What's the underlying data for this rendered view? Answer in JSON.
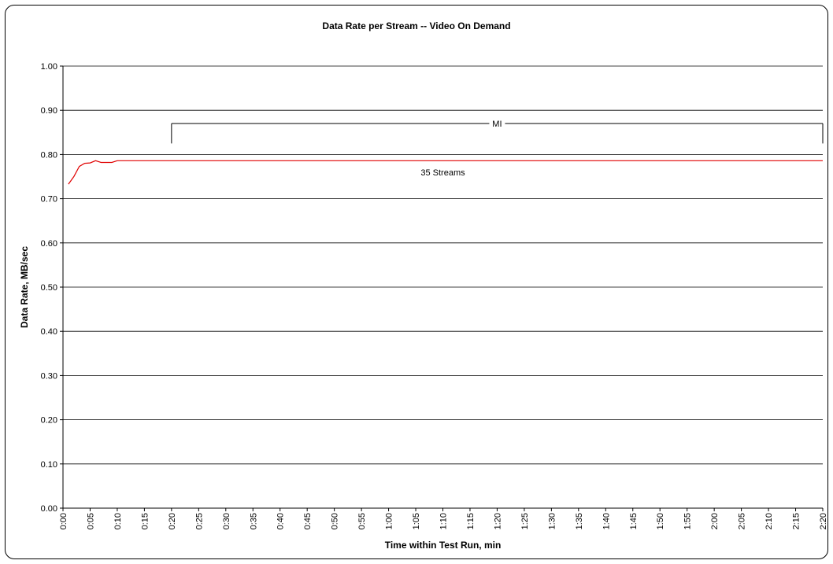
{
  "chart_data": {
    "type": "line",
    "title": "Data Rate per Stream -- Video On Demand",
    "xlabel": "Time within Test Run, min",
    "ylabel": "Data Rate, MB/sec",
    "ylim": [
      0,
      1.0
    ],
    "yticks": [
      "0.00",
      "0.10",
      "0.20",
      "0.30",
      "0.40",
      "0.50",
      "0.60",
      "0.70",
      "0.80",
      "0.90",
      "1.00"
    ],
    "xlim": [
      0,
      140
    ],
    "xtick_step": 5,
    "xticks": [
      "0:00",
      "0:05",
      "0:10",
      "0:15",
      "0:20",
      "0:25",
      "0:30",
      "0:35",
      "0:40",
      "0:45",
      "0:50",
      "0:55",
      "1:00",
      "1:05",
      "1:10",
      "1:15",
      "1:20",
      "1:25",
      "1:30",
      "1:35",
      "1:40",
      "1:45",
      "1:50",
      "1:55",
      "2:00",
      "2:05",
      "2:10",
      "2:15",
      "2:20"
    ],
    "grid": true,
    "series": [
      {
        "color": "#e00000",
        "x": [
          1,
          2,
          3,
          4,
          5,
          6,
          7,
          8,
          9,
          10,
          12,
          20,
          40,
          60,
          80,
          100,
          120,
          140
        ],
        "y": [
          0.733,
          0.75,
          0.773,
          0.78,
          0.781,
          0.786,
          0.782,
          0.782,
          0.782,
          0.786,
          0.786,
          0.786,
          0.786,
          0.786,
          0.786,
          0.786,
          0.786,
          0.786
        ]
      }
    ],
    "annotations": [
      {
        "text": "35 Streams",
        "x": 70,
        "y": 0.76
      },
      {
        "text": "MI",
        "bracket_x": [
          20,
          140
        ],
        "y": 0.87,
        "tick_bottom": 0.825
      }
    ]
  }
}
